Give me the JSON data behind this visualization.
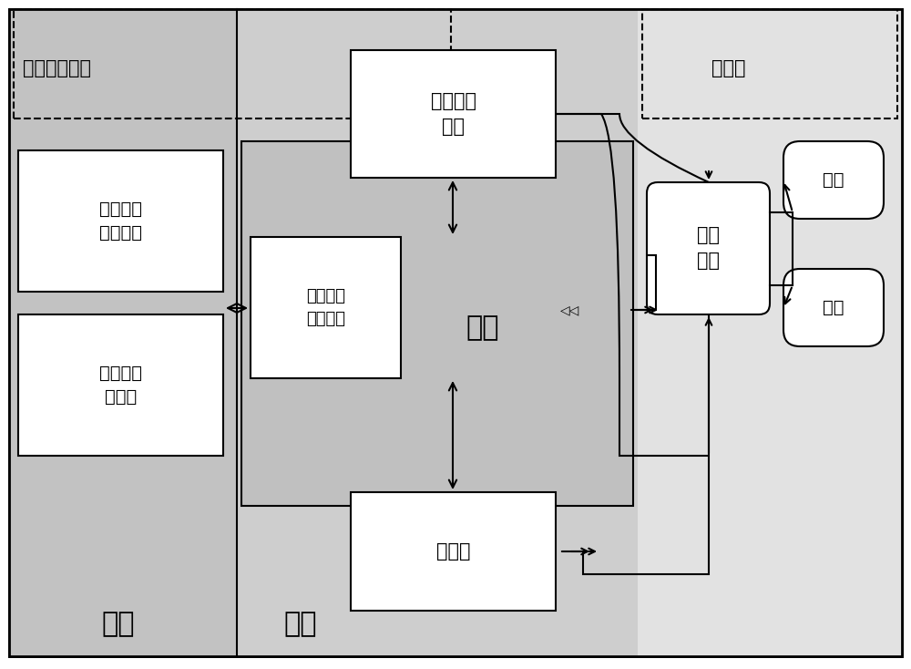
{
  "title": "航磁探测系统",
  "uav_label": "无人机",
  "ground_label": "地面",
  "air_label": "空中",
  "box_remote_ground": "遥控遥测\n通讯装置",
  "box_ground_ctrl": "地面操控\n计算机",
  "box_remote_air": "遥控遥测\n通讯装置",
  "box_power": "多路电源\n模块",
  "box_host": "主机",
  "box_sensor": "传感器",
  "box_servo": "伺服\n驱动",
  "box_rudder": "舰机",
  "box_throttle": "油门",
  "color_outer_bg": "#c8c8c8",
  "color_ground_bg": "#c0c0c0",
  "color_air_bg": "#d0d0d0",
  "color_uav_bg": "#e0e0e0",
  "color_main_block": "#c8c8c8",
  "color_white": "#ffffff",
  "color_black": "#000000"
}
